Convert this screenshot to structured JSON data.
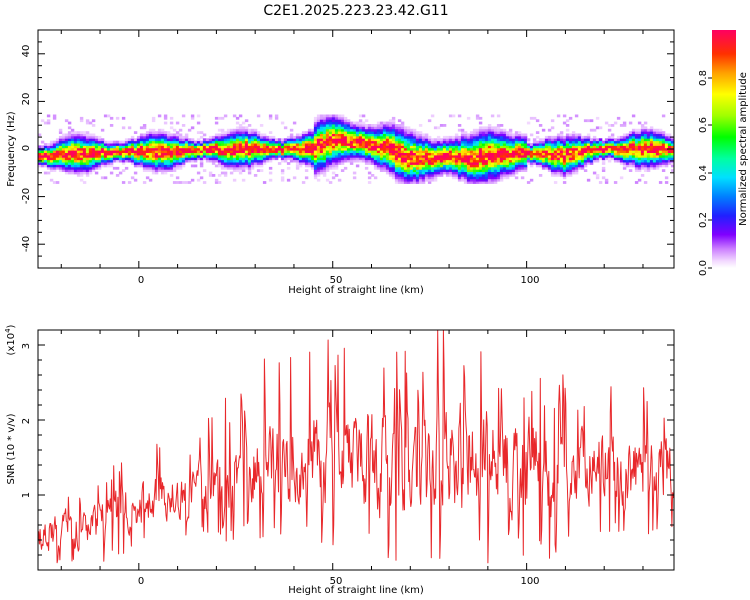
{
  "figure_title": "C2E1.2025.223.23.42.G11",
  "chart_data": [
    {
      "type": "heatmap",
      "title": "C2E1.2025.223.23.42.G11",
      "xlabel": "Height of straight line (km)",
      "ylabel": "Frequency (Hz)",
      "xlim": [
        -26,
        138
      ],
      "ylim": [
        -50,
        50
      ],
      "xticks": [
        0,
        50,
        100
      ],
      "yticks": [
        40,
        20,
        0,
        -20,
        -40
      ],
      "colorbar": {
        "label": "Normalized spectral amplitude",
        "range": [
          0,
          1
        ],
        "ticks": [
          "0.0",
          "0.2",
          "0.4",
          "0.6",
          "0.8"
        ],
        "colormap": "rainbow (violet to red)"
      },
      "ridge_center_hz": {
        "x": [
          -26,
          -15,
          0,
          10,
          20,
          30,
          40,
          45,
          50,
          55,
          60,
          65,
          70,
          75,
          80,
          85,
          90,
          95,
          100,
          105,
          110,
          115,
          120,
          130,
          138
        ],
        "y": [
          -3,
          -2,
          -1,
          -1,
          0,
          0,
          0,
          0,
          4,
          3,
          2,
          0,
          -4,
          -4,
          -3,
          -4,
          -3,
          -2,
          -2,
          -2,
          -3,
          -1,
          0,
          0,
          0
        ]
      }
    },
    {
      "type": "line",
      "xlabel": "Height of straight line (km)",
      "ylabel": "SNR (10 * v/v)",
      "y_multiplier_label": "(x10^4)",
      "xlim": [
        -26,
        138
      ],
      "ylim": [
        0,
        3.2
      ],
      "xticks": [
        0,
        50,
        100
      ],
      "yticks": [
        1,
        2,
        3
      ],
      "color": "#e8282b",
      "envelope": {
        "x": [
          -26,
          -20,
          -10,
          0,
          10,
          20,
          25,
          30,
          40,
          50,
          60,
          70,
          80,
          88,
          95,
          100,
          110,
          120,
          130,
          138
        ],
        "mean": [
          0.45,
          0.5,
          0.65,
          0.9,
          1.0,
          1.15,
          1.35,
          1.45,
          1.5,
          1.55,
          1.45,
          1.35,
          1.4,
          1.5,
          1.45,
          1.35,
          1.3,
          1.35,
          1.35,
          1.4
        ],
        "spread": [
          0.3,
          0.35,
          0.4,
          0.45,
          0.45,
          0.55,
          0.7,
          0.75,
          0.85,
          0.9,
          0.95,
          1.0,
          1.05,
          1.05,
          0.9,
          0.9,
          0.8,
          0.7,
          0.65,
          0.6
        ]
      }
    }
  ]
}
